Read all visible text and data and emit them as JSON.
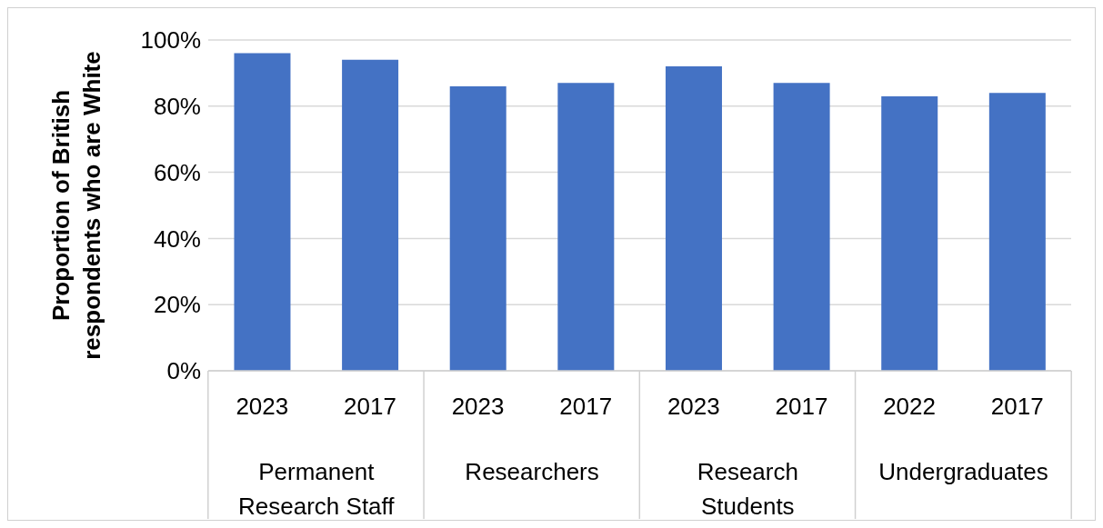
{
  "chart_data": {
    "type": "bar",
    "ylabel": "Proportion of British respondents who are White",
    "categories": [
      "2023",
      "2017",
      "2023",
      "2017",
      "2023",
      "2017",
      "2022",
      "2017"
    ],
    "annotations": [
      "Permanent Research Staff",
      "Researchers",
      "Research Students",
      "Undergraduates"
    ],
    "values": [
      96,
      94,
      86,
      87,
      92,
      87,
      83,
      84
    ],
    "color": "#4472c4",
    "ylim": [
      0,
      100
    ],
    "yticks": [
      {
        "value": 0,
        "label": "0%"
      },
      {
        "value": 20,
        "label": "20%"
      },
      {
        "value": 40,
        "label": "40%"
      },
      {
        "value": 60,
        "label": "60%"
      },
      {
        "value": 80,
        "label": "80%"
      },
      {
        "value": 100,
        "label": "100%"
      }
    ],
    "grid": "y"
  }
}
